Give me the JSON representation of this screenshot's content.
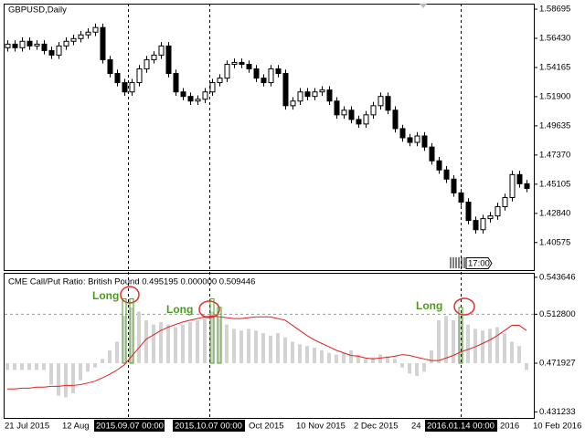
{
  "chart_data": [
    {
      "type": "candlestick",
      "title": "GBPUSD,Daily",
      "tag": "17:00",
      "x_labels": [
        "21 Jul 2015",
        "12 Aug",
        "2015.09.07 00:00",
        "2015.10.07 00:00",
        "Oct 2015",
        "10 Nov 2015",
        "2 Dec 2015",
        "24",
        "2016.01.14 00:00",
        "2016",
        "10 Feb 2016"
      ],
      "up_color": "#ffffff",
      "down_color": "#000000",
      "edge_color": "#000000",
      "open": [
        1.557,
        1.5598,
        1.557,
        1.562,
        1.5584,
        1.5598,
        1.5548,
        1.5513,
        1.5584,
        1.562,
        1.5641,
        1.567,
        1.5691,
        1.5727,
        1.5477,
        1.537,
        1.5299,
        1.5227,
        1.5299,
        1.5406,
        1.5477,
        1.5513,
        1.5584,
        1.537,
        1.5227,
        1.5192,
        1.5156,
        1.517,
        1.5227,
        1.5299,
        1.5334,
        1.5441,
        1.5456,
        1.5441,
        1.5406,
        1.5334,
        1.5299,
        1.5406,
        1.537,
        1.512,
        1.5156,
        1.5227,
        1.5192,
        1.5227,
        1.5242,
        1.5156,
        1.5049,
        1.5085,
        1.5013,
        1.4978,
        1.5049,
        1.512,
        1.5192,
        1.5085,
        1.4942,
        1.4871,
        1.4835,
        1.4885,
        1.4799,
        1.4692,
        1.4621,
        1.455,
        1.4443,
        1.4371,
        1.4229,
        1.4157,
        1.4243,
        1.4264,
        1.4336,
        1.4407,
        1.4585,
        1.4514
      ],
      "high": [
        1.5628,
        1.5628,
        1.565,
        1.565,
        1.5628,
        1.5628,
        1.5578,
        1.5614,
        1.565,
        1.5671,
        1.57,
        1.5721,
        1.5757,
        1.5757,
        1.5507,
        1.54,
        1.5329,
        1.5329,
        1.5436,
        1.5507,
        1.5543,
        1.5614,
        1.5614,
        1.54,
        1.5257,
        1.5222,
        1.52,
        1.5257,
        1.5329,
        1.5364,
        1.5471,
        1.5486,
        1.5486,
        1.5471,
        1.5436,
        1.5364,
        1.5436,
        1.5436,
        1.54,
        1.5186,
        1.5257,
        1.5257,
        1.5257,
        1.5272,
        1.5272,
        1.5186,
        1.5115,
        1.5115,
        1.5043,
        1.5079,
        1.515,
        1.5222,
        1.5222,
        1.5115,
        1.4972,
        1.4901,
        1.4915,
        1.4915,
        1.4829,
        1.4722,
        1.4651,
        1.458,
        1.4473,
        1.4401,
        1.4259,
        1.4273,
        1.4294,
        1.4366,
        1.4437,
        1.4615,
        1.4615,
        1.4544
      ],
      "low": [
        1.554,
        1.554,
        1.554,
        1.5554,
        1.5554,
        1.5518,
        1.5483,
        1.5483,
        1.5554,
        1.559,
        1.5611,
        1.564,
        1.5661,
        1.5447,
        1.534,
        1.5269,
        1.5197,
        1.5197,
        1.5269,
        1.5376,
        1.5447,
        1.5483,
        1.534,
        1.5197,
        1.5162,
        1.5126,
        1.5126,
        1.514,
        1.5197,
        1.5269,
        1.5304,
        1.5411,
        1.5411,
        1.5376,
        1.5304,
        1.5269,
        1.5269,
        1.534,
        1.509,
        1.509,
        1.5126,
        1.5162,
        1.5162,
        1.5197,
        1.5126,
        1.5019,
        1.5019,
        1.4983,
        1.4948,
        1.4948,
        1.5019,
        1.509,
        1.5055,
        1.4912,
        1.4841,
        1.4805,
        1.4805,
        1.4769,
        1.4662,
        1.4591,
        1.452,
        1.4413,
        1.4341,
        1.4199,
        1.4127,
        1.4127,
        1.4213,
        1.4234,
        1.4306,
        1.4377,
        1.4484,
        1.4448
      ],
      "close": [
        1.5598,
        1.557,
        1.562,
        1.5584,
        1.5598,
        1.5548,
        1.5513,
        1.5584,
        1.562,
        1.5641,
        1.567,
        1.5691,
        1.5727,
        1.5477,
        1.537,
        1.5299,
        1.5227,
        1.5299,
        1.5406,
        1.5477,
        1.5513,
        1.5584,
        1.537,
        1.5227,
        1.5192,
        1.5156,
        1.517,
        1.5227,
        1.5299,
        1.5334,
        1.5441,
        1.5456,
        1.5441,
        1.5406,
        1.5334,
        1.5299,
        1.5406,
        1.537,
        1.512,
        1.5156,
        1.5227,
        1.5192,
        1.5227,
        1.5242,
        1.5156,
        1.5049,
        1.5085,
        1.5013,
        1.4978,
        1.5049,
        1.512,
        1.5192,
        1.5085,
        1.4942,
        1.4871,
        1.4835,
        1.4885,
        1.4799,
        1.4692,
        1.4621,
        1.455,
        1.4443,
        1.4371,
        1.4229,
        1.4157,
        1.4243,
        1.4264,
        1.4336,
        1.4407,
        1.4585,
        1.4514,
        1.4478
      ],
      "ylim": [
        1.38435,
        1.59123
      ],
      "yticks": [
        1.58695,
        {
          "value": 1.5643,
          "label": "1.56430"
        },
        1.54165,
        {
          "value": 1.519,
          "label": "1.51900"
        },
        1.49635,
        {
          "value": 1.4737,
          "label": "1.47370"
        },
        1.45105,
        {
          "value": 1.4284,
          "label": "1.42840"
        },
        1.40575
      ]
    },
    {
      "type": "bar",
      "title": "CME Call/Put Ratio: British Pound 0.495195 0.000000 0.509446",
      "color": "#d3d3d3",
      "line_color": "#e02020",
      "signal_color": "#4a9a1e",
      "values": [
        0.4662,
        0.4662,
        0.4662,
        0.4662,
        0.4662,
        0.4662,
        0.454,
        0.4447,
        0.4433,
        0.4468,
        0.4576,
        0.4648,
        0.4683,
        0.4755,
        0.4827,
        0.4899,
        0.5114,
        0.5185,
        0.515,
        0.5078,
        0.5042,
        0.5063,
        0.5042,
        0.502,
        0.5042,
        0.5063,
        0.5078,
        0.5114,
        0.515,
        0.5092,
        0.5042,
        0.5006,
        0.4992,
        0.5006,
        0.4992,
        0.497,
        0.4949,
        0.497,
        0.4934,
        0.4899,
        0.4877,
        0.4863,
        0.4848,
        0.4827,
        0.4805,
        0.4791,
        0.4805,
        0.4827,
        0.4791,
        0.4755,
        0.4769,
        0.4791,
        0.4777,
        0.4755,
        0.4683,
        0.4633,
        0.4612,
        0.4648,
        0.4827,
        0.5078,
        0.5114,
        0.5078,
        0.5114,
        0.5042,
        0.5006,
        0.4992,
        0.5006,
        0.502,
        0.497,
        0.4899,
        0.4863,
        0.4662
      ],
      "line_values": [
        0.4504,
        0.4504,
        0.4511,
        0.4511,
        0.4519,
        0.4519,
        0.4526,
        0.4526,
        0.4533,
        0.4533,
        0.454,
        0.4554,
        0.4569,
        0.4597,
        0.4626,
        0.4662,
        0.4705,
        0.4777,
        0.4848,
        0.492,
        0.4956,
        0.4992,
        0.502,
        0.5042,
        0.5063,
        0.5078,
        0.5092,
        0.5106,
        0.5114,
        0.5106,
        0.5099,
        0.5092,
        0.5092,
        0.5099,
        0.5106,
        0.5106,
        0.5106,
        0.5092,
        0.5078,
        0.5035,
        0.4992,
        0.4949,
        0.4913,
        0.4884,
        0.4856,
        0.4827,
        0.4805,
        0.4784,
        0.4777,
        0.4762,
        0.4755,
        0.4762,
        0.4769,
        0.4777,
        0.4791,
        0.4784,
        0.4769,
        0.4755,
        0.4741,
        0.4741,
        0.4762,
        0.4784,
        0.4813,
        0.4834,
        0.4856,
        0.4884,
        0.4913,
        0.4949,
        0.4992,
        0.5035,
        0.5035,
        0.4992
      ],
      "signal_values": [
        null,
        null,
        null,
        null,
        null,
        null,
        null,
        null,
        null,
        null,
        null,
        null,
        null,
        null,
        null,
        null,
        0.5257,
        0.5257,
        null,
        null,
        null,
        null,
        null,
        null,
        null,
        null,
        null,
        null,
        0.5257,
        0.5185,
        null,
        null,
        null,
        null,
        null,
        null,
        null,
        null,
        null,
        null,
        null,
        null,
        null,
        null,
        null,
        null,
        null,
        null,
        null,
        null,
        null,
        null,
        null,
        null,
        null,
        null,
        null,
        null,
        null,
        null,
        null,
        null,
        0.5185,
        null,
        null,
        null,
        null,
        null,
        null,
        null,
        null,
        null
      ],
      "annotations": [
        "Long",
        "Long",
        "Long"
      ],
      "ylim": [
        0.4262,
        0.5466
      ],
      "yticks": [
        0.543646,
        {
          "value": 0.5128,
          "label": "0.512800"
        },
        0.471927,
        0.431233
      ]
    }
  ]
}
